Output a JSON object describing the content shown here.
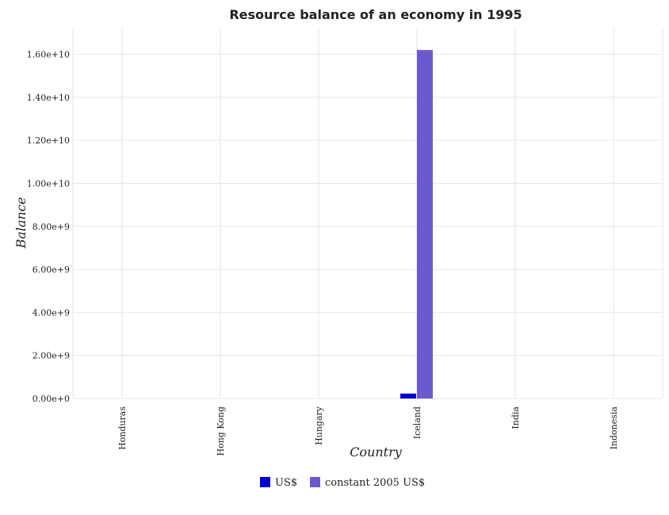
{
  "chart_data": {
    "type": "bar",
    "title": "Resource balance of an economy in 1995",
    "xlabel": "Country",
    "ylabel": "Balance",
    "categories": [
      "Honduras",
      "Hong Kong",
      "Hungary",
      "Iceland",
      "India",
      "Indonesia"
    ],
    "series": [
      {
        "name": "US$",
        "color": "#0000cd",
        "values": [
          0,
          0,
          0,
          230000000,
          0,
          0
        ]
      },
      {
        "name": "constant 2005 US$",
        "color": "#6a5acd",
        "values": [
          0,
          0,
          0,
          16200000000,
          0,
          0
        ]
      }
    ],
    "ylim": [
      0,
      17200000000
    ],
    "yticks": [
      0,
      2000000000,
      4000000000,
      6000000000,
      8000000000,
      10000000000,
      12000000000,
      14000000000,
      16000000000
    ],
    "ytick_labels": [
      "0.00e+0",
      "2.00e+9",
      "4.00e+9",
      "6.00e+9",
      "8.00e+9",
      "1.00e+10",
      "1.20e+10",
      "1.40e+10",
      "1.60e+10"
    ],
    "grid": true,
    "legend": "bottom-center"
  }
}
